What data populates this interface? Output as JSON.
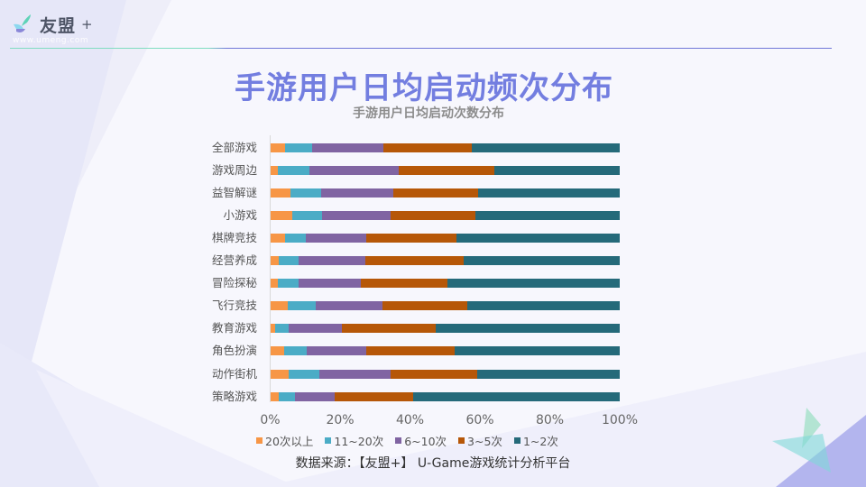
{
  "header": {
    "logo_text": "友盟",
    "logo_plus": "+",
    "logo_url": "www.umeng.com"
  },
  "title": "手游用户日均启动频次分布",
  "subtitle": "手游用户日均启动次数分布",
  "source": "数据来源：【友盟+】 U-Game游戏统计分析平台",
  "colors": {
    "s20plus": "#f79646",
    "s11to20": "#4bacc6",
    "s6to10": "#8064a2",
    "s3to5": "#b65708",
    "s1to2": "#256a7a",
    "title": "#737ee0"
  },
  "chart_data": {
    "type": "bar",
    "orientation": "horizontal",
    "stacked": "percent",
    "title": "手游用户日均启动次数分布",
    "xlabel": "",
    "ylabel": "",
    "xlim": [
      0,
      100
    ],
    "x_ticks": [
      "0%",
      "20%",
      "40%",
      "60%",
      "80%",
      "100%"
    ],
    "legend_position": "bottom",
    "grid": false,
    "categories": [
      "全部游戏",
      "游戏周边",
      "益智解谜",
      "小游戏",
      "棋牌竞技",
      "经营养成",
      "冒险探秘",
      "飞行竞技",
      "教育游戏",
      "角色扮演",
      "动作街机",
      "策略游戏"
    ],
    "series": [
      {
        "name": "20次以上",
        "color": "#f79646",
        "values": [
          4.3,
          2.2,
          5.8,
          6.3,
          4.3,
          2.5,
          2.2,
          5.0,
          1.4,
          4.0,
          5.3,
          2.5
        ]
      },
      {
        "name": "11~20次",
        "color": "#4bacc6",
        "values": [
          7.7,
          9.0,
          8.8,
          8.5,
          5.9,
          5.6,
          5.9,
          8.0,
          3.9,
          6.5,
          8.8,
          4.6
        ]
      },
      {
        "name": "6~10次",
        "color": "#8064a2",
        "values": [
          20.4,
          25.6,
          20.6,
          19.7,
          17.3,
          19.1,
          17.8,
          19.1,
          15.2,
          17.0,
          20.4,
          11.4
        ]
      },
      {
        "name": "3~5次",
        "color": "#b65708",
        "values": [
          25.3,
          27.3,
          24.3,
          24.2,
          25.8,
          28.2,
          24.8,
          24.3,
          26.9,
          25.3,
          24.7,
          22.4
        ]
      },
      {
        "name": "1~2次",
        "color": "#256a7a",
        "values": [
          42.3,
          35.9,
          40.5,
          41.3,
          46.7,
          44.6,
          49.3,
          43.6,
          52.6,
          47.2,
          40.8,
          59.1
        ]
      }
    ]
  }
}
